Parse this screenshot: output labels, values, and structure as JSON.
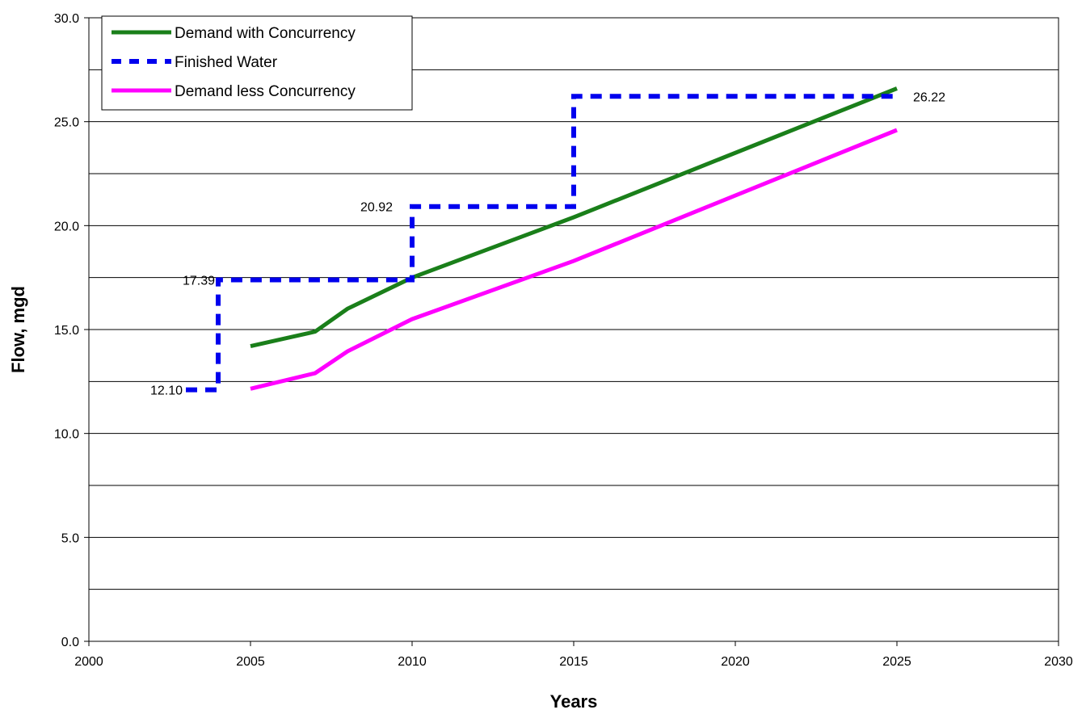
{
  "chart_data": {
    "type": "line",
    "title": "",
    "xlabel": "Years",
    "ylabel": "Flow, mgd",
    "xlim": [
      2000,
      2030
    ],
    "ylim": [
      0,
      30
    ],
    "x_ticks": [
      "2000",
      "2005",
      "2010",
      "2015",
      "2020",
      "2025",
      "2030"
    ],
    "y_ticks": [
      "0.0",
      "5.0",
      "10.0",
      "15.0",
      "20.0",
      "25.0",
      "30.0"
    ],
    "horizontal_gridlines_at": [
      2.5,
      5,
      7.5,
      10,
      12.5,
      15,
      17.5,
      20,
      22.5,
      25,
      27.5
    ],
    "grid": true,
    "legend_position": "top-left",
    "series": [
      {
        "name": "Demand with Concurrency",
        "color": "#1a7f1a",
        "style": "solid",
        "points": [
          [
            2005,
            14.2
          ],
          [
            2007,
            14.9
          ],
          [
            2008,
            16.0
          ],
          [
            2010,
            17.5
          ],
          [
            2015,
            20.4
          ],
          [
            2025,
            26.6
          ]
        ]
      },
      {
        "name": "Finished Water",
        "color": "#0000ee",
        "style": "dashed",
        "points": [
          [
            2003,
            12.1
          ],
          [
            2004,
            12.1
          ],
          [
            2004,
            17.39
          ],
          [
            2010,
            17.39
          ],
          [
            2010,
            20.92
          ],
          [
            2015,
            20.92
          ],
          [
            2015,
            26.22
          ],
          [
            2025,
            26.22
          ]
        ]
      },
      {
        "name": "Demand less Concurrency",
        "color": "#ff00ff",
        "style": "solid",
        "points": [
          [
            2005,
            12.15
          ],
          [
            2007,
            12.9
          ],
          [
            2008,
            13.95
          ],
          [
            2010,
            15.5
          ],
          [
            2015,
            18.3
          ],
          [
            2025,
            24.6
          ]
        ]
      }
    ],
    "annotations": [
      {
        "text": "12.10",
        "x": 2003,
        "y": 12.1,
        "anchor": "end"
      },
      {
        "text": "17.39",
        "x": 2004,
        "y": 17.39,
        "anchor": "end"
      },
      {
        "text": "20.92",
        "x": 2009.5,
        "y": 20.92,
        "anchor": "end"
      },
      {
        "text": "26.22",
        "x": 2025.4,
        "y": 26.22,
        "anchor": "start"
      }
    ]
  }
}
